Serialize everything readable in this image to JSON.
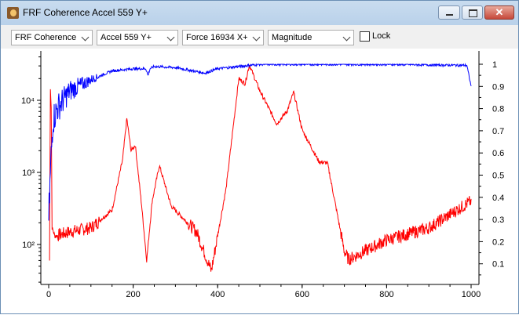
{
  "window": {
    "title": "FRF Coherence Accel 559 Y+",
    "buttons": {
      "minimize": "minimize",
      "maximize": "maximize",
      "close": "✕"
    }
  },
  "toolbar": {
    "plot_type": "FRF Coherence",
    "response": "Accel 559 Y+",
    "reference": "Force 16934 X+",
    "format": "Magnitude",
    "lock_label": "Lock",
    "lock_checked": false
  },
  "colors": {
    "frf": "#ff0000",
    "coherence": "#0000ff",
    "axes": "#000000"
  },
  "chart_data": {
    "type": "line",
    "title": "",
    "xlabel": "",
    "ylabel_left": "",
    "ylabel_right": "",
    "xlim": [
      0,
      1000
    ],
    "ylim_left": [
      30,
      40000
    ],
    "yscale_left": "log",
    "ylim_right": [
      0,
      1.02
    ],
    "grid": false,
    "legend": "none",
    "x_ticks": [
      "0",
      "200",
      "400",
      "600",
      "800",
      "1000"
    ],
    "y_left_ticks": [
      "10²",
      "10³",
      "10⁴"
    ],
    "y_right_ticks": [
      "0.1",
      "0.2",
      "0.3",
      "0.4",
      "0.5",
      "0.6",
      "0.7",
      "0.8",
      "0.9",
      "1"
    ],
    "series": [
      {
        "name": "FRF Magnitude",
        "axis": "left",
        "color": "#ff0000",
        "x": [
          2,
          4,
          6,
          8,
          15,
          50,
          100,
          150,
          175,
          185,
          195,
          205,
          220,
          232,
          245,
          262,
          290,
          350,
          385,
          420,
          450,
          465,
          475,
          500,
          540,
          565,
          580,
          600,
          640,
          660,
          700,
          710,
          800,
          900,
          1000
        ],
        "values": [
          60,
          15000,
          8000,
          170,
          130,
          150,
          170,
          300,
          1500,
          5600,
          2000,
          2400,
          350,
          60,
          400,
          1250,
          340,
          150,
          43,
          600,
          20000,
          17000,
          31000,
          13500,
          4700,
          7200,
          13000,
          3900,
          1400,
          1350,
          80,
          62,
          115,
          170,
          400
        ]
      },
      {
        "name": "Coherence",
        "axis": "right",
        "color": "#0000ff",
        "x": [
          0,
          5,
          10,
          20,
          50,
          100,
          150,
          200,
          230,
          235,
          240,
          250,
          300,
          370,
          400,
          450,
          500,
          600,
          800,
          990,
          1000
        ],
        "values": [
          0.3,
          0.55,
          0.75,
          0.8,
          0.88,
          0.93,
          0.97,
          0.98,
          0.98,
          0.95,
          0.98,
          0.99,
          0.985,
          0.96,
          0.98,
          0.99,
          1.0,
          1.0,
          1.0,
          0.995,
          0.9
        ]
      }
    ]
  }
}
